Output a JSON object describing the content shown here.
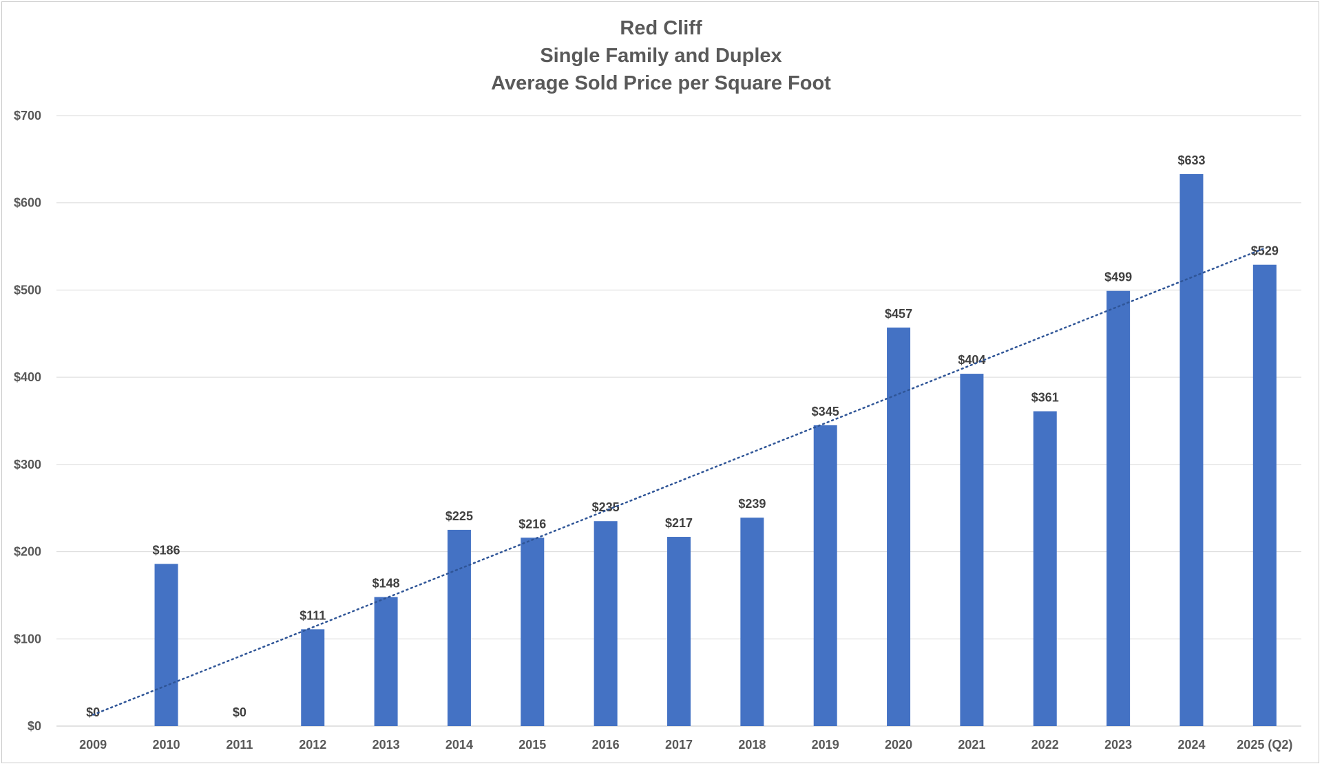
{
  "chart_data": {
    "type": "bar",
    "title": [
      "Red Cliff",
      "Single Family and Duplex",
      "Average Sold Price per Square Foot"
    ],
    "xlabel": "",
    "ylabel": "",
    "categories": [
      "2009",
      "2010",
      "2011",
      "2012",
      "2013",
      "2014",
      "2015",
      "2016",
      "2017",
      "2018",
      "2019",
      "2020",
      "2021",
      "2022",
      "2023",
      "2024",
      "2025 (Q2)"
    ],
    "values": [
      0,
      186,
      0,
      111,
      148,
      225,
      216,
      235,
      217,
      239,
      345,
      457,
      404,
      361,
      499,
      633,
      529
    ],
    "data_labels": [
      "$0",
      "$186",
      "$0",
      "$111",
      "$148",
      "$225",
      "$216",
      "$235",
      "$217",
      "$239",
      "$345",
      "$457",
      "$404",
      "$361",
      "$499",
      "$633",
      "$529"
    ],
    "ylim": [
      0,
      700
    ],
    "yticks": [
      0,
      100,
      200,
      300,
      400,
      500,
      600,
      700
    ],
    "ytick_labels": [
      "$0",
      "$100",
      "$200",
      "$300",
      "$400",
      "$500",
      "$600",
      "$700"
    ],
    "trendline": {
      "type": "linear",
      "style": "dotted",
      "start": 13,
      "end": 548
    },
    "grid": true,
    "legend": "none",
    "colors": {
      "bar": "#4472c4",
      "trendline": "#2f5597",
      "text": "#595959",
      "grid": "#d9d9d9"
    }
  }
}
